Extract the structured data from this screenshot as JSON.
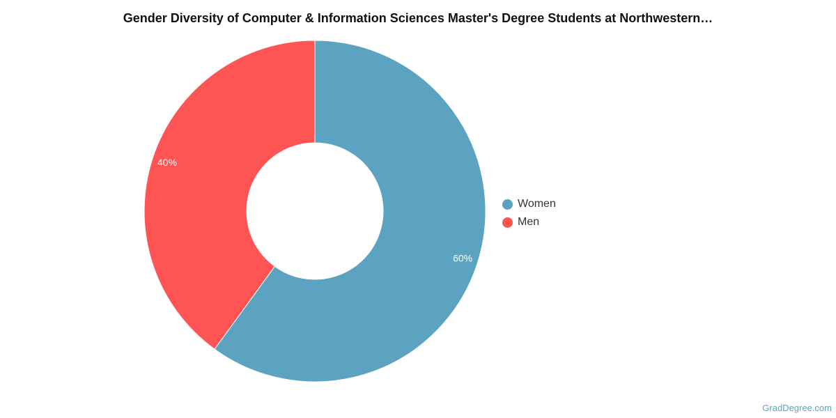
{
  "chart_data": {
    "type": "pie",
    "variant": "donut",
    "title": "Gender Diversity of Computer & Information Sciences Master's Degree Students at Northwestern…",
    "categories": [
      "Women",
      "Men"
    ],
    "values": [
      60,
      40
    ],
    "data_labels": [
      "60%",
      "40%"
    ],
    "colors": [
      "#5ba3c0",
      "#ff5454"
    ],
    "legend_position": "right"
  },
  "legend": {
    "items": [
      {
        "label": "Women",
        "color": "#5ba3c0"
      },
      {
        "label": "Men",
        "color": "#ff5454"
      }
    ]
  },
  "source_text": "GradDegree.com"
}
